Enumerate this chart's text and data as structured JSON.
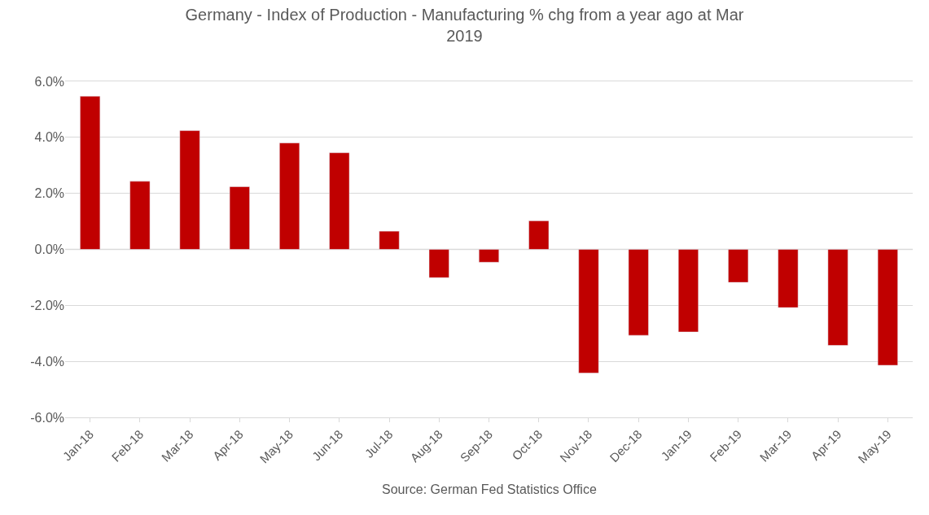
{
  "chart_data": {
    "type": "bar",
    "title": "Germany - Index of Production - Manufacturing % chg from a year ago at Mar\n2019",
    "categories": [
      "Jan-18",
      "Feb-18",
      "Mar-18",
      "Apr-18",
      "May-18",
      "Jun-18",
      "Jul-18",
      "Aug-18",
      "Sep-18",
      "Oct-18",
      "Nov-18",
      "Dec-18",
      "Jan-19",
      "Feb-19",
      "Mar-19",
      "Apr-19",
      "May-19"
    ],
    "values": [
      5.47,
      2.43,
      4.24,
      2.24,
      3.8,
      3.45,
      0.65,
      -1.01,
      -0.46,
      1.02,
      -4.42,
      -3.07,
      -2.95,
      -1.18,
      -2.08,
      -3.43,
      -4.14
    ],
    "color": "#c00000",
    "ylim": [
      -6,
      6
    ],
    "yticks": [
      {
        "value": -6,
        "label": "-6.0%"
      },
      {
        "value": -4,
        "label": "-4.0%"
      },
      {
        "value": -2,
        "label": "-2.0%"
      },
      {
        "value": 0,
        "label": "0.0%"
      },
      {
        "value": 2,
        "label": "2.0%"
      },
      {
        "value": 4,
        "label": "4.0%"
      },
      {
        "value": 6,
        "label": "6.0%"
      }
    ],
    "grid": "y",
    "annotations": [
      "Source: German Fed Statistics Office"
    ]
  }
}
